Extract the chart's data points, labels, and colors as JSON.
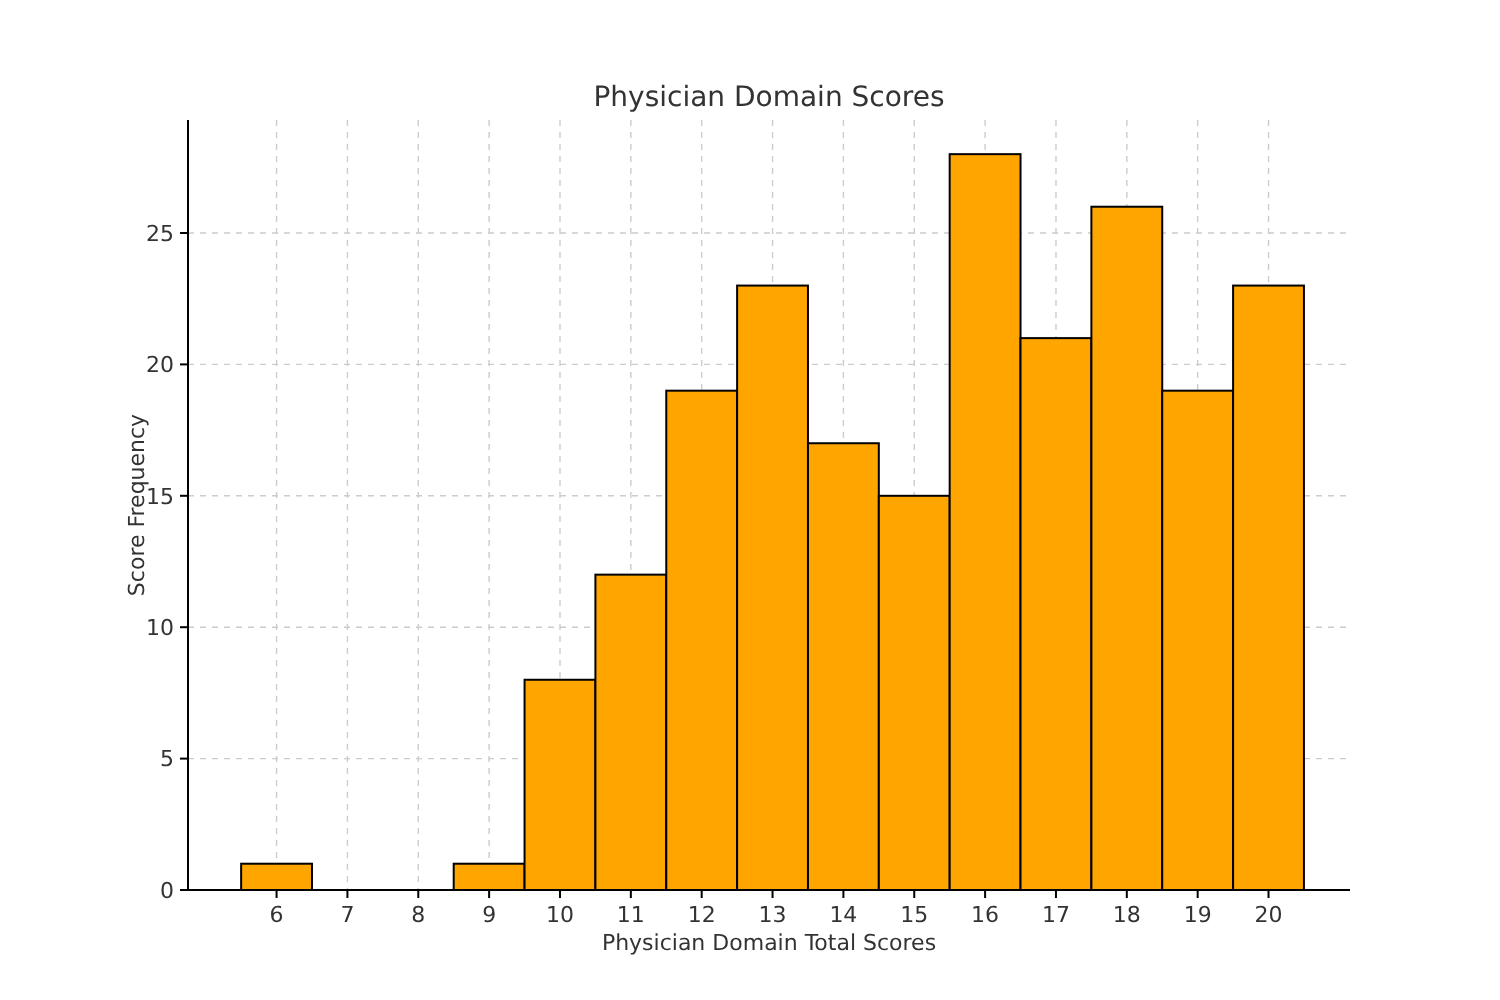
{
  "chart_data": {
    "type": "histogram",
    "title": "Physician Domain Scores",
    "xlabel": "Physician Domain Total Scores",
    "ylabel": "Score Frequency",
    "bins": [
      5.5,
      6.5,
      7.5,
      8.5,
      9.5,
      10.5,
      11.5,
      12.5,
      13.5,
      14.5,
      15.5,
      16.5,
      17.5,
      18.5,
      19.5,
      20.5
    ],
    "values": [
      1,
      0,
      0,
      1,
      8,
      12,
      19,
      23,
      17,
      15,
      28,
      21,
      26,
      19,
      23
    ],
    "color": "#ffa500",
    "xlim": [
      4.75,
      21.15
    ],
    "xticks": [
      6,
      7,
      8,
      9,
      10,
      11,
      12,
      13,
      14,
      15,
      16,
      17,
      18,
      19,
      20
    ],
    "ylim": [
      0,
      29.3
    ],
    "yticks": [
      0,
      5,
      10,
      15,
      20,
      25
    ],
    "grid": true
  }
}
